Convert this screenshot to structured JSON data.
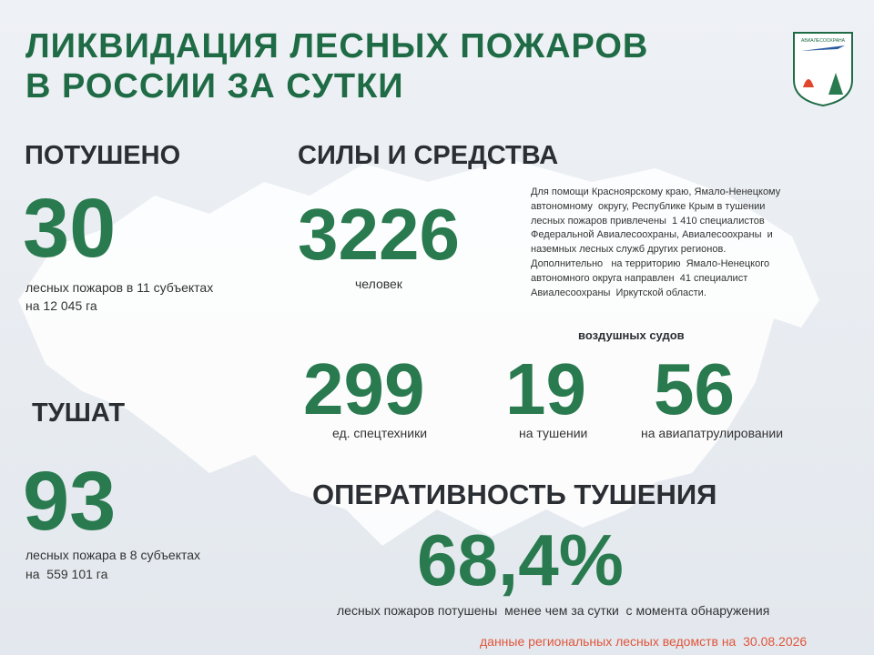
{
  "header": {
    "title_lines": [
      "ЛИКВИДАЦИЯ ЛЕСНЫХ ПОЖАРОВ",
      "В РОССИИ ЗА СУТКИ"
    ],
    "logo_text": "АВИАЛЕСООХРАНА"
  },
  "extinguished": {
    "heading": "ПОТУШЕНО",
    "number": "30",
    "lines": [
      "лесных пожаров в 11 субъектах",
      "на 12 045 га"
    ]
  },
  "burning": {
    "heading": "ТУШАТ",
    "number": "93",
    "lines": [
      "лесных пожара в 8 субъектах",
      "на  559 101 га"
    ]
  },
  "forces": {
    "heading": "СИЛЫ И СРЕДСТВА",
    "people_number": "3226",
    "people_label": "человек",
    "description_lines": [
      "Для помощи Красноярскому краю, Ямало-Ненецкому",
      "автономному  округу, Республике Крым в тушении",
      "лесных пожаров привлечены  1 410 специалистов",
      "Федеральной Авиалесоохраны, Авиалесоохраны  и",
      "наземных лесных служб других регионов.",
      "Дополнительно   на территорию  Ямало-Ненецкого",
      "автономного округа направлен  41 специалист",
      "Авиалесоохраны  Иркутской области."
    ],
    "equipment_number": "299",
    "equipment_label": "ед. спецтехники",
    "aircraft_heading": "воздушных судов",
    "aircraft_firefighting_number": "19",
    "aircraft_firefighting_label": "на тушении",
    "aircraft_patrol_number": "56",
    "aircraft_patrol_label": "на авиапатрулировании"
  },
  "efficiency": {
    "heading": "ОПЕРАТИВНОСТЬ ТУШЕНИЯ",
    "number": "68,4%",
    "caption": "лесных пожаров потушены  менее чем за сутки  с момента обнаружения"
  },
  "footer": "данные региональных лесных ведомств на  30.08.2026"
}
